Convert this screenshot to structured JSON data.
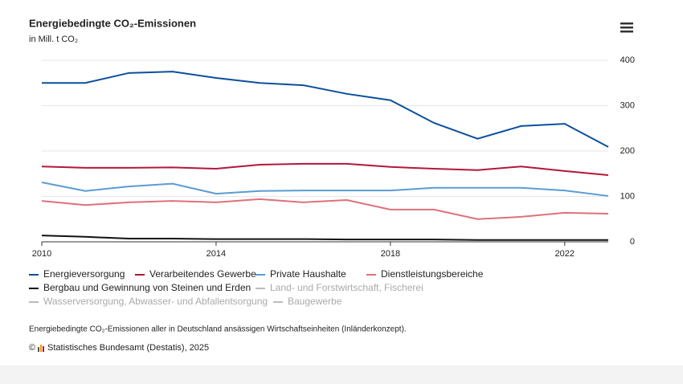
{
  "chart_data": {
    "type": "line",
    "title": "Energiebedingte CO₂-Emissionen",
    "subtitle": "in Mill. t CO₂",
    "x": [
      2010,
      2011,
      2012,
      2013,
      2014,
      2015,
      2016,
      2017,
      2018,
      2019,
      2020,
      2021,
      2022,
      2023
    ],
    "xlim": [
      2010,
      2023
    ],
    "xticks": [
      2010,
      2014,
      2018,
      2022
    ],
    "ylim": [
      0,
      400
    ],
    "yticks": [
      0,
      100,
      200,
      300,
      400
    ],
    "grid": true,
    "series": [
      {
        "name": "Energieversorgung",
        "color": "#0b4f9c",
        "visible": true,
        "values": [
          350,
          350,
          372,
          375,
          361,
          350,
          345,
          326,
          312,
          262,
          227,
          255,
          260,
          209
        ]
      },
      {
        "name": "Verarbeitendes Gewerbe",
        "color": "#b3173b",
        "visible": true,
        "values": [
          166,
          163,
          163,
          164,
          161,
          170,
          172,
          172,
          165,
          161,
          158,
          166,
          156,
          147
        ]
      },
      {
        "name": "Private Haushalte",
        "color": "#5b9bd5",
        "visible": true,
        "values": [
          131,
          112,
          122,
          128,
          106,
          112,
          113,
          113,
          113,
          119,
          119,
          119,
          113,
          101
        ]
      },
      {
        "name": "Dienstleistungsbereiche",
        "color": "#e0707a",
        "visible": true,
        "values": [
          90,
          81,
          87,
          90,
          87,
          94,
          87,
          92,
          71,
          71,
          50,
          55,
          64,
          62
        ]
      },
      {
        "name": "Bergbau und Gewinnung von Steinen und Erden",
        "color": "#111111",
        "visible": true,
        "values": [
          14,
          11,
          7,
          7,
          6,
          6,
          6,
          5,
          5,
          5,
          4,
          4,
          4,
          4
        ]
      },
      {
        "name": "Land- und Forstwirtschaft, Fischerei",
        "color": "#bbbbbb",
        "visible": false
      },
      {
        "name": "Wasserversorgung, Abwasser- und Abfallentsorgung",
        "color": "#bbbbbb",
        "visible": false
      },
      {
        "name": "Baugewerbe",
        "color": "#bbbbbb",
        "visible": false
      }
    ],
    "note": "Energiebedingte CO₂-Emissionen aller in Deutschland ansässigen Wirtschaftseinheiten (Inländerkonzept).",
    "source_symbol": "©",
    "source": "Statistisches Bundesamt (Destatis), 2025"
  }
}
